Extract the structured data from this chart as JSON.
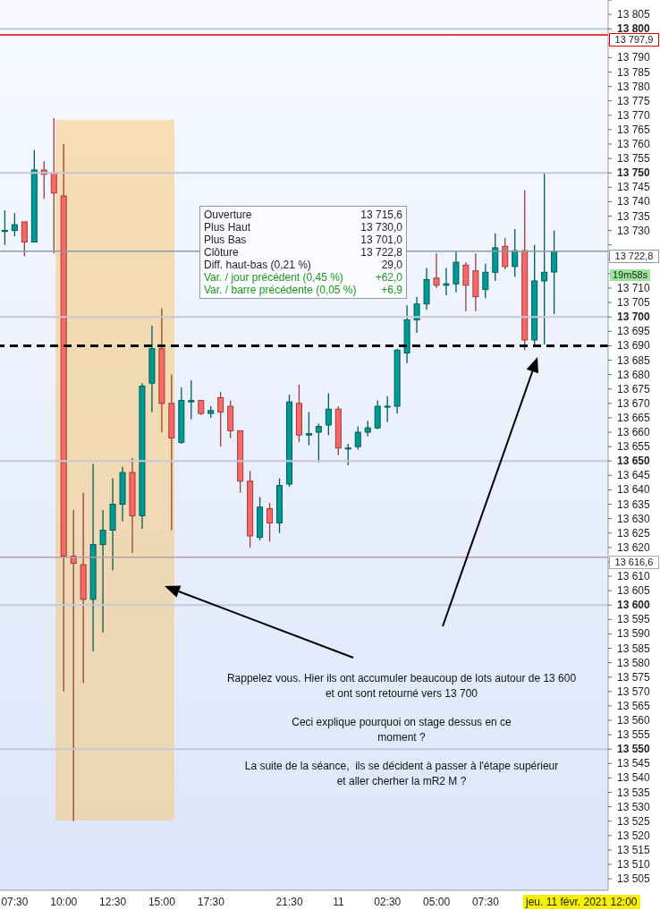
{
  "chart_data": {
    "type": "candlestick",
    "categories": [
      null,
      "07:30",
      null,
      null,
      null,
      null,
      "10:00",
      null,
      null,
      null,
      null,
      "12:30",
      null,
      null,
      null,
      null,
      "15:00",
      null,
      null,
      null,
      null,
      "17:30",
      null,
      null,
      null,
      null,
      null,
      null,
      null,
      "21:30",
      null,
      null,
      null,
      null,
      "11",
      null,
      null,
      null,
      null,
      "02:30",
      null,
      null,
      null,
      null,
      "05:00",
      null,
      null,
      null,
      null,
      "07:30",
      null,
      null,
      null,
      null,
      null,
      null,
      null,
      null,
      null,
      null,
      null,
      null
    ],
    "ohlc": [
      [
        13730,
        13737,
        13725,
        13730
      ],
      [
        13730,
        13736,
        13728,
        13732
      ],
      [
        13733,
        13733,
        13721,
        13726
      ],
      [
        13726,
        13758,
        13726,
        13751
      ],
      [
        13751,
        13754,
        13741,
        13749.5
      ],
      [
        13750,
        13769,
        13722,
        13743
      ],
      [
        13742,
        13760,
        13570,
        13617
      ],
      [
        13617,
        13633,
        13525,
        13614.5
      ],
      [
        13614,
        13639,
        13573,
        13602
      ],
      [
        13602,
        13649,
        13584,
        13621
      ],
      [
        13621,
        13633,
        13590.5,
        13626
      ],
      [
        13626,
        13644,
        13612,
        13635
      ],
      [
        13635,
        13648,
        13629,
        13646
      ],
      [
        13646,
        13651,
        13618,
        13631
      ],
      [
        13631,
        13677,
        13626.5,
        13676
      ],
      [
        13677,
        13697,
        13667,
        13689
      ],
      [
        13689,
        13703,
        13660,
        13670
      ],
      [
        13670,
        13680,
        13626,
        13658
      ],
      [
        13656.5,
        13675.5,
        13656,
        13671
      ],
      [
        13670.5,
        13678,
        13664.5,
        13671
      ],
      [
        13671,
        13671,
        13666,
        13666.5
      ],
      [
        13666.5,
        13669,
        13665,
        13667.5
      ],
      [
        13672,
        13674,
        13655,
        13667
      ],
      [
        13669,
        13671,
        13658,
        13660.5
      ],
      [
        13660.5,
        13660.5,
        13639,
        13643
      ],
      [
        13643,
        13646.5,
        13620,
        13624
      ],
      [
        13623.5,
        13637.5,
        13622.5,
        13634
      ],
      [
        13633.5,
        13635.5,
        13622,
        13628.5
      ],
      [
        13628.5,
        13644,
        13625,
        13641.5
      ],
      [
        13642,
        13673,
        13641,
        13670.5
      ],
      [
        13670,
        13676.5,
        13656.5,
        13659
      ],
      [
        13659,
        13667,
        13655.5,
        13659.5
      ],
      [
        13660,
        13663,
        13649.5,
        13662
      ],
      [
        13662.5,
        13673.5,
        13659,
        13668
      ],
      [
        13668,
        13669,
        13652,
        13654.5
      ],
      [
        13654.5,
        13656,
        13648.5,
        13654.5
      ],
      [
        13655,
        13662,
        13654,
        13660
      ],
      [
        13660,
        13664,
        13658.5,
        13661.5
      ],
      [
        13661.5,
        13671,
        13661,
        13669
      ],
      [
        13669,
        13672.5,
        13663.5,
        13669
      ],
      [
        13669,
        13689,
        13666.5,
        13688.5
      ],
      [
        13687.5,
        13704,
        13684,
        13699
      ],
      [
        13699,
        13707,
        13694.5,
        13704.5
      ],
      [
        13704.5,
        13717,
        13702.5,
        13713
      ],
      [
        13713.5,
        13722,
        13710,
        13711
      ],
      [
        13711,
        13717,
        13707.5,
        13711.5
      ],
      [
        13711.5,
        13723,
        13708.5,
        13719
      ],
      [
        13718,
        13719,
        13702,
        13711
      ],
      [
        13716,
        13722,
        13702,
        13707
      ],
      [
        13709.5,
        13718.5,
        13706.5,
        13715.5
      ],
      [
        13715.5,
        13729,
        13712.5,
        13724
      ],
      [
        13724.5,
        13727.5,
        13716.5,
        13717.5
      ],
      [
        13717.5,
        13730.5,
        13714,
        13723
      ],
      [
        13723,
        13744,
        13688.5,
        13692
      ],
      [
        13692,
        13725,
        13689.5,
        13712.5
      ],
      [
        13712.5,
        13750,
        13690.5,
        13715.5
      ],
      [
        13715.6,
        13730.0,
        13701.0,
        13722.8
      ],
      null,
      null,
      null,
      null,
      null
    ],
    "colors": [
      "#009994",
      "#009994",
      "#ff6666",
      "#009994",
      "#ff6666",
      "#ff6666",
      "#ff6666",
      "#ff6666",
      "#ff6666",
      "#009994",
      "#009994",
      "#009994",
      "#009994",
      "#ff6666",
      "#009994",
      "#009994",
      "#ff6666",
      "#ff6666",
      "#009994",
      "#009994",
      "#ff6666",
      "#009994",
      "#ff6666",
      "#ff6666",
      "#ff6666",
      "#ff6666",
      "#009994",
      "#ff6666",
      "#009994",
      "#009994",
      "#ff6666",
      "#009994",
      "#009994",
      "#009994",
      "#ff6666",
      "#009994",
      "#009994",
      "#009994",
      "#009994",
      "#009994",
      "#009994",
      "#009994",
      "#009994",
      "#009994",
      "#ff6666",
      "#009994",
      "#009994",
      "#ff6666",
      "#ff6666",
      "#009994",
      "#009994",
      "#ff6666",
      "#009994",
      "#ff6666",
      "#009994",
      "#009994",
      "#009994",
      null,
      null,
      null,
      null,
      null
    ],
    "ylim": [
      13501,
      13810
    ],
    "yticks": [
      {
        "value": 13505,
        "label": "13 505"
      },
      {
        "value": 13510,
        "label": "13 510"
      },
      {
        "value": 13515,
        "label": "13 515"
      },
      {
        "value": 13520,
        "label": "13 520"
      },
      {
        "value": 13525,
        "label": "13 525"
      },
      {
        "value": 13530,
        "label": "13 530"
      },
      {
        "value": 13535,
        "label": "13 535"
      },
      {
        "value": 13540,
        "label": "13 540"
      },
      {
        "value": 13545,
        "label": "13 545"
      },
      {
        "value": 13550,
        "label": "13 550"
      },
      {
        "value": 13555,
        "label": "13 555"
      },
      {
        "value": 13560,
        "label": "13 560"
      },
      {
        "value": 13565,
        "label": "13 565"
      },
      {
        "value": 13570,
        "label": "13 570"
      },
      {
        "value": 13575,
        "label": "13 575"
      },
      {
        "value": 13580,
        "label": "13 580"
      },
      {
        "value": 13585,
        "label": "13 585"
      },
      {
        "value": 13590,
        "label": "13 590"
      },
      {
        "value": 13595,
        "label": "13 595"
      },
      {
        "value": 13600,
        "label": "13 600"
      },
      {
        "value": 13605,
        "label": "13 605"
      },
      {
        "value": 13610,
        "label": "13 610"
      },
      {
        "value": 13615,
        "label": null
      },
      {
        "value": 13620,
        "label": "13 620"
      },
      {
        "value": 13625,
        "label": "13 625"
      },
      {
        "value": 13630,
        "label": "13 630"
      },
      {
        "value": 13635,
        "label": "13 635"
      },
      {
        "value": 13640,
        "label": "13 640"
      },
      {
        "value": 13645,
        "label": "13 645"
      },
      {
        "value": 13650,
        "label": "13 650"
      },
      {
        "value": 13655,
        "label": "13 655"
      },
      {
        "value": 13660,
        "label": "13 660"
      },
      {
        "value": 13665,
        "label": "13 665"
      },
      {
        "value": 13670,
        "label": "13 670"
      },
      {
        "value": 13675,
        "label": "13 675"
      },
      {
        "value": 13680,
        "label": "13 680"
      },
      {
        "value": 13685,
        "label": "13 685"
      },
      {
        "value": 13690,
        "label": "13 690"
      },
      {
        "value": 13695,
        "label": "13 695"
      },
      {
        "value": 13700,
        "label": "13 700"
      },
      {
        "value": 13705,
        "label": "13 705"
      },
      {
        "value": 13710,
        "label": "13 710"
      },
      {
        "value": 13715,
        "label": null
      },
      {
        "value": 13720,
        "label": null
      },
      {
        "value": 13725,
        "label": null
      },
      {
        "value": 13730,
        "label": "13 730"
      },
      {
        "value": 13735,
        "label": "13 735"
      },
      {
        "value": 13740,
        "label": "13 740"
      },
      {
        "value": 13745,
        "label": "13 745"
      },
      {
        "value": 13750,
        "label": "13 750"
      },
      {
        "value": 13755,
        "label": "13 755"
      },
      {
        "value": 13760,
        "label": "13 760"
      },
      {
        "value": 13765,
        "label": "13 765"
      },
      {
        "value": 13770,
        "label": "13 770"
      },
      {
        "value": 13775,
        "label": "13 775"
      },
      {
        "value": 13780,
        "label": "13 780"
      },
      {
        "value": 13785,
        "label": "13 785"
      },
      {
        "value": 13790,
        "label": "13 790"
      },
      {
        "value": 13795,
        "label": null
      },
      {
        "value": 13800,
        "label": "13 800"
      },
      {
        "value": 13805,
        "label": "13 805"
      },
      {
        "value": 13810,
        "label": null
      }
    ],
    "ref_lines": [
      {
        "axis": "y",
        "value": 13550,
        "label": null,
        "color": "#c5c8d6"
      },
      {
        "axis": "y",
        "value": 13600,
        "label": null,
        "color": "#c5c8d6"
      },
      {
        "axis": "y",
        "value": 13650,
        "label": null,
        "color": "#c5c8d6"
      },
      {
        "axis": "y",
        "value": 13700,
        "label": null,
        "color": "#c5c8d6"
      },
      {
        "axis": "y",
        "value": 13750,
        "label": null,
        "color": "#c5c8d6"
      },
      {
        "axis": "y",
        "value": 13800,
        "label": null,
        "color": "#c5c8d6"
      },
      {
        "axis": "y",
        "value": 13797.9,
        "label": "13 797,9",
        "color": "#e00000"
      },
      {
        "axis": "y",
        "value": 13722.8,
        "label": "13 722,8",
        "color": "#8c9aa6"
      },
      {
        "axis": "y",
        "value": 13616.6,
        "label": "13 616,6",
        "color": "#b8a0a8"
      },
      {
        "axis": "y",
        "value": 13690,
        "label": null,
        "color": "#000000",
        "line_style": "dashed"
      }
    ],
    "annotations": [
      "Ouverture",
      "13 715,6",
      "Plus Haut",
      "13 730,0",
      "Plus Bas",
      "13 701,0",
      "Clôture",
      "13 722,8",
      "Diff. haut-bas (0,21 %)",
      "29,0",
      "Var. / jour précédent (0,45 %)",
      "+62,0",
      "Var. / barre précédente (0,05 %)",
      "+6,9",
      "Rappelez vous. Hier ils ont accumuler beaucoup de lots autour de 13 600\net ont sont retourné vers 13 700",
      "Ceci explique pourquoi on stage dessus en ce\nmoment ?",
      "La suite de la séance,  ils se décident à passer à l'étape supérieur\net aller cherher la mR2 M ?",
      "19m58s",
      "jeu. 11 févr. 2021 12:00"
    ]
  }
}
